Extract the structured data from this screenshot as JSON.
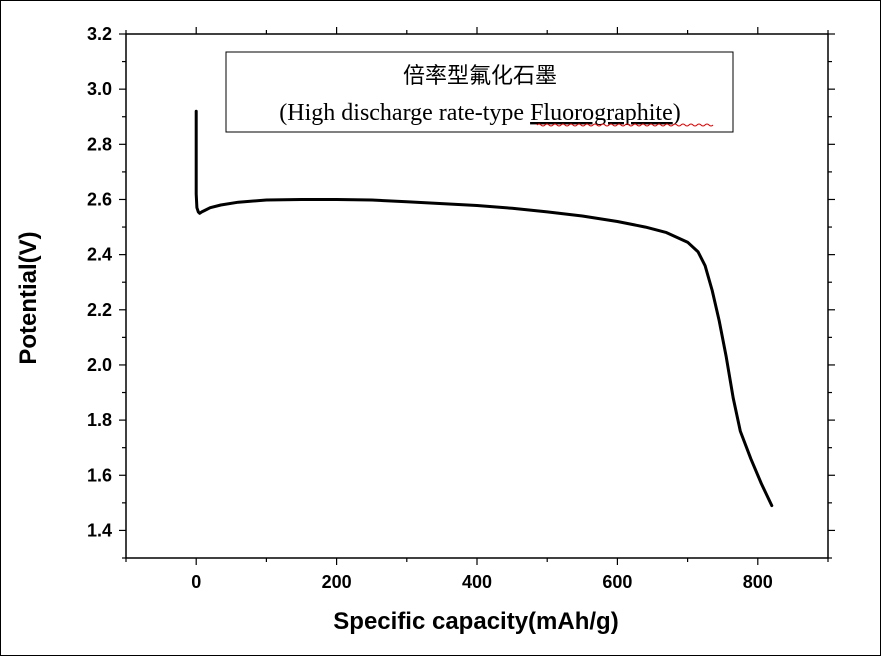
{
  "chart_data": {
    "type": "line",
    "title_line1": "倍率型氟化石墨",
    "title_line2_prefix": "(High discharge rate-type ",
    "title_line2_word": "Fluorographite",
    "title_line2_suffix": ")",
    "xlabel": "Specific capacity(mAh/g)",
    "ylabel": "Potential(V)",
    "xlim": [
      -100,
      900
    ],
    "ylim": [
      1.3,
      3.2
    ],
    "x_ticks": [
      0,
      200,
      400,
      600,
      800
    ],
    "x_tick_labels": [
      "0",
      "200",
      "400",
      "600",
      "800"
    ],
    "y_ticks": [
      1.4,
      1.6,
      1.8,
      2.0,
      2.2,
      2.4,
      2.6,
      2.8,
      3.0,
      3.2
    ],
    "y_tick_labels": [
      "1.4",
      "1.6",
      "1.8",
      "2.0",
      "2.2",
      "2.4",
      "2.6",
      "2.8",
      "3.0",
      "3.2"
    ],
    "series": [
      {
        "name": "High discharge rate-type Fluorographite",
        "color": "#000000",
        "x": [
          0,
          0,
          1,
          3,
          5,
          8,
          12,
          20,
          35,
          60,
          100,
          150,
          200,
          250,
          300,
          350,
          400,
          450,
          500,
          550,
          600,
          640,
          670,
          700,
          715,
          725,
          735,
          745,
          755,
          765,
          775,
          790,
          805,
          820
        ],
        "y": [
          2.92,
          2.62,
          2.57,
          2.555,
          2.55,
          2.555,
          2.56,
          2.57,
          2.58,
          2.59,
          2.598,
          2.6,
          2.6,
          2.598,
          2.592,
          2.585,
          2.578,
          2.568,
          2.555,
          2.54,
          2.52,
          2.5,
          2.48,
          2.445,
          2.41,
          2.36,
          2.27,
          2.16,
          2.03,
          1.88,
          1.76,
          1.66,
          1.57,
          1.49
        ]
      }
    ]
  }
}
